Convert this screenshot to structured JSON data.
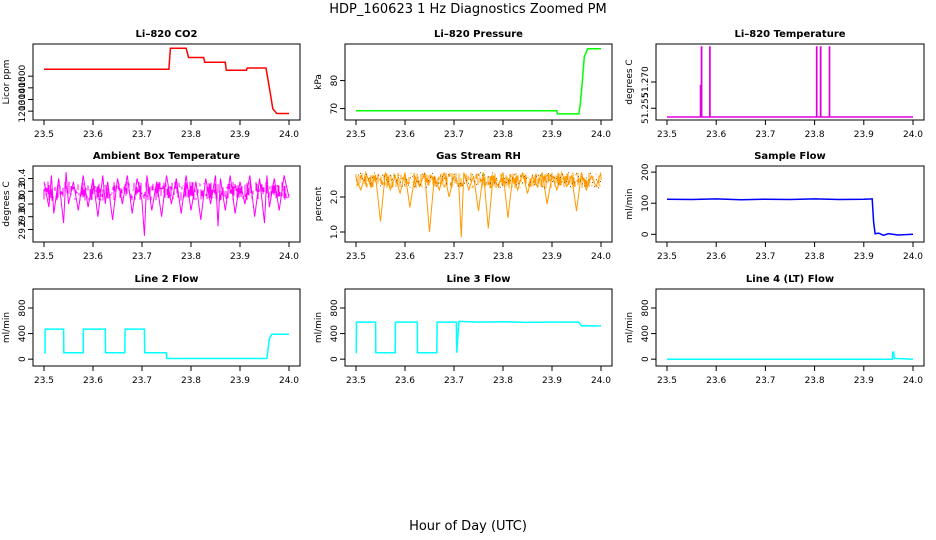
{
  "figure": {
    "title": "HDP_160623  1 Hz Diagnostics Zoomed PM",
    "xlabel": "Hour of Day (UTC)"
  },
  "chart_data": [
    {
      "type": "line",
      "title": "Li–820 CO2",
      "ylabel": "Licor ppm",
      "color": "#ff0000",
      "xlim": [
        23.5,
        24.0
      ],
      "ylim": [
        1150,
        1750
      ],
      "xticks": [
        "23.5",
        "23.6",
        "23.7",
        "23.8",
        "23.9",
        "24.0"
      ],
      "yticks": [
        "1200",
        "1300",
        "1400",
        "1500"
      ],
      "x": [
        23.5,
        23.755,
        23.758,
        23.79,
        23.795,
        23.826,
        23.828,
        23.87,
        23.872,
        23.913,
        23.915,
        23.953,
        23.962,
        23.967,
        23.975,
        24.0
      ],
      "y": [
        1560,
        1560,
        1740,
        1740,
        1660,
        1660,
        1620,
        1620,
        1550,
        1550,
        1570,
        1570,
        1350,
        1220,
        1180,
        1180
      ]
    },
    {
      "type": "line",
      "title": "Li–820 Pressure",
      "ylabel": "kPa",
      "color": "#00ff00",
      "xlim": [
        23.5,
        24.0
      ],
      "ylim": [
        67,
        92
      ],
      "xticks": [
        "23.5",
        "23.6",
        "23.7",
        "23.8",
        "23.9",
        "24.0"
      ],
      "yticks": [
        "70",
        "80"
      ],
      "x": [
        23.5,
        23.91,
        23.911,
        23.955,
        23.958,
        23.962,
        23.966,
        23.973,
        24.0
      ],
      "y": [
        69.2,
        69.2,
        68.1,
        68.1,
        72,
        80,
        88.5,
        91.4,
        91.4
      ]
    },
    {
      "type": "line",
      "title": "Li–820 Temperature",
      "ylabel": "degrees C",
      "color": "#dd00dd",
      "xlim": [
        23.5,
        24.0
      ],
      "ylim": [
        51.25,
        51.29
      ],
      "xticks": [
        "23.5",
        "23.6",
        "23.7",
        "23.8",
        "23.9",
        "24.0"
      ],
      "yticks": [
        "51.255",
        "51.270"
      ],
      "x": [
        23.5,
        23.568,
        23.568,
        23.5685,
        23.5685,
        23.57,
        23.57,
        23.5705,
        23.5705,
        23.587,
        23.587,
        23.5875,
        23.5875,
        23.804,
        23.804,
        23.8045,
        23.8045,
        23.812,
        23.812,
        23.8125,
        23.8125,
        23.83,
        23.83,
        23.8305,
        23.8305,
        24.0
      ],
      "y": [
        51.25,
        51.25,
        51.268,
        51.268,
        51.25,
        51.25,
        51.29,
        51.29,
        51.25,
        51.25,
        51.29,
        51.29,
        51.25,
        51.25,
        51.29,
        51.29,
        51.25,
        51.25,
        51.29,
        51.29,
        51.25,
        51.25,
        51.29,
        51.29,
        51.25,
        51.25
      ]
    },
    {
      "type": "line",
      "title": "Ambient Box Temperature",
      "ylabel": "degrees C",
      "color": "#ff00ff",
      "xlim": [
        23.5,
        24.0
      ],
      "ylim": [
        29.45,
        30.55
      ],
      "xticks": [
        "23.5",
        "23.6",
        "23.7",
        "23.8",
        "23.9",
        "24.0"
      ],
      "yticks": [
        "29.6",
        "29.8",
        "30.0",
        "30.2",
        "30.4"
      ],
      "x": [
        23.5,
        23.51,
        23.515,
        23.52,
        23.53,
        23.54,
        23.545,
        23.55,
        23.56,
        23.57,
        23.58,
        23.59,
        23.6,
        23.61,
        23.62,
        23.625,
        23.63,
        23.64,
        23.65,
        23.66,
        23.67,
        23.68,
        23.69,
        23.7,
        23.705,
        23.71,
        23.72,
        23.73,
        23.74,
        23.75,
        23.76,
        23.77,
        23.78,
        23.79,
        23.8,
        23.81,
        23.82,
        23.83,
        23.84,
        23.85,
        23.855,
        23.86,
        23.87,
        23.88,
        23.89,
        23.9,
        23.91,
        23.92,
        23.93,
        23.94,
        23.95,
        23.955,
        23.96,
        23.97,
        23.98,
        23.99,
        24.0
      ],
      "y": [
        30.35,
        29.95,
        30.45,
        29.85,
        30.4,
        29.7,
        30.5,
        30.0,
        30.35,
        29.9,
        30.45,
        29.95,
        30.4,
        29.8,
        30.45,
        30.0,
        30.35,
        29.75,
        30.4,
        30.0,
        30.45,
        29.85,
        30.4,
        30.05,
        29.5,
        30.45,
        29.9,
        30.35,
        29.8,
        30.45,
        30.0,
        30.4,
        29.85,
        30.45,
        29.9,
        30.35,
        29.75,
        30.4,
        30.0,
        30.45,
        29.65,
        30.4,
        29.9,
        30.45,
        29.85,
        30.35,
        30.0,
        30.45,
        29.8,
        30.4,
        29.7,
        30.45,
        29.95,
        30.4,
        29.9,
        30.45,
        30.1
      ]
    },
    {
      "type": "line",
      "title": "Gas Stream RH",
      "ylabel": "percent",
      "color": "#ff9900",
      "marker_color": "#806000",
      "xlim": [
        23.5,
        24.0
      ],
      "ylim": [
        0.8,
        2.8
      ],
      "xticks": [
        "23.5",
        "23.6",
        "23.7",
        "23.8",
        "23.9",
        "24.0"
      ],
      "yticks": [
        "1.0",
        "2.0"
      ],
      "x": [
        23.5,
        23.51,
        23.52,
        23.53,
        23.54,
        23.55,
        23.56,
        23.57,
        23.58,
        23.59,
        23.6,
        23.61,
        23.62,
        23.63,
        23.64,
        23.65,
        23.66,
        23.67,
        23.68,
        23.69,
        23.7,
        23.71,
        23.715,
        23.72,
        23.73,
        23.74,
        23.75,
        23.76,
        23.77,
        23.78,
        23.79,
        23.8,
        23.81,
        23.82,
        23.83,
        23.84,
        23.85,
        23.86,
        23.87,
        23.88,
        23.89,
        23.9,
        23.91,
        23.92,
        23.93,
        23.94,
        23.95,
        23.96,
        23.97,
        23.98,
        23.99,
        24.0
      ],
      "y": [
        2.5,
        2.2,
        2.7,
        2.3,
        2.6,
        1.3,
        2.7,
        2.2,
        2.6,
        2.1,
        2.7,
        1.7,
        2.6,
        2.3,
        2.7,
        1.0,
        2.6,
        2.2,
        2.7,
        2.0,
        2.6,
        2.3,
        0.85,
        2.7,
        2.2,
        2.6,
        1.6,
        2.7,
        1.1,
        2.6,
        2.3,
        2.7,
        1.4,
        2.6,
        2.2,
        2.7,
        2.1,
        2.6,
        2.3,
        2.7,
        1.8,
        2.6,
        2.2,
        2.7,
        2.3,
        2.6,
        1.6,
        2.7,
        2.2,
        2.6,
        2.3,
        2.7
      ]
    },
    {
      "type": "line",
      "title": "Sample Flow",
      "ylabel": "ml/min",
      "color": "#0000ff",
      "xlim": [
        23.5,
        24.0
      ],
      "ylim": [
        -15,
        210
      ],
      "xticks": [
        "23.5",
        "23.6",
        "23.7",
        "23.8",
        "23.9",
        "24.0"
      ],
      "yticks": [
        "0",
        "100",
        "200"
      ],
      "x": [
        23.5,
        23.55,
        23.6,
        23.65,
        23.7,
        23.75,
        23.8,
        23.85,
        23.9,
        23.917,
        23.92,
        23.923,
        23.93,
        23.94,
        23.95,
        23.97,
        24.0
      ],
      "y": [
        113,
        112,
        114,
        111,
        113,
        112,
        114,
        112,
        113,
        114,
        40,
        2,
        4,
        -3,
        2,
        -2,
        0
      ]
    },
    {
      "type": "line",
      "title": "Line 2 Flow",
      "ylabel": "ml/min",
      "color": "#00ffff",
      "xlim": [
        23.5,
        24.0
      ],
      "ylim": [
        -60,
        1050
      ],
      "xticks": [
        "23.5",
        "23.6",
        "23.7",
        "23.8",
        "23.9",
        "24.0"
      ],
      "yticks": [
        "0",
        "400",
        "800"
      ],
      "x": [
        23.5,
        23.502,
        23.5025,
        23.54,
        23.5405,
        23.58,
        23.5805,
        23.625,
        23.6255,
        23.665,
        23.6655,
        23.705,
        23.7055,
        23.75,
        23.7505,
        23.955,
        23.96,
        23.965,
        24.0
      ],
      "y": [
        100,
        100,
        470,
        470,
        100,
        100,
        470,
        470,
        100,
        100,
        470,
        470,
        100,
        100,
        10,
        10,
        330,
        390,
        390
      ]
    },
    {
      "type": "line",
      "title": "Line 3 Flow",
      "ylabel": "ml/min",
      "color": "#00ffff",
      "xlim": [
        23.5,
        24.0
      ],
      "ylim": [
        -60,
        1050
      ],
      "xticks": [
        "23.5",
        "23.6",
        "23.7",
        "23.8",
        "23.9",
        "24.0"
      ],
      "yticks": [
        "0",
        "400",
        "800"
      ],
      "x": [
        23.5,
        23.5005,
        23.501,
        23.54,
        23.5405,
        23.58,
        23.5805,
        23.625,
        23.6255,
        23.665,
        23.6655,
        23.705,
        23.7055,
        23.71,
        23.75,
        23.8,
        23.85,
        23.9,
        23.955,
        23.96,
        24.0
      ],
      "y": [
        100,
        100,
        580,
        580,
        100,
        100,
        580,
        580,
        100,
        100,
        580,
        580,
        100,
        590,
        580,
        585,
        575,
        580,
        580,
        520,
        520
      ]
    },
    {
      "type": "line",
      "title": "Line 4 (LT) Flow",
      "ylabel": "ml/min",
      "color": "#00ffff",
      "xlim": [
        23.5,
        24.0
      ],
      "ylim": [
        -60,
        1050
      ],
      "xticks": [
        "23.5",
        "23.6",
        "23.7",
        "23.8",
        "23.9",
        "24.0"
      ],
      "yticks": [
        "0",
        "400",
        "800"
      ],
      "x": [
        23.5,
        23.958,
        23.959,
        23.961,
        23.962,
        23.98,
        24.0
      ],
      "y": [
        0,
        0,
        110,
        110,
        10,
        5,
        0
      ]
    }
  ]
}
